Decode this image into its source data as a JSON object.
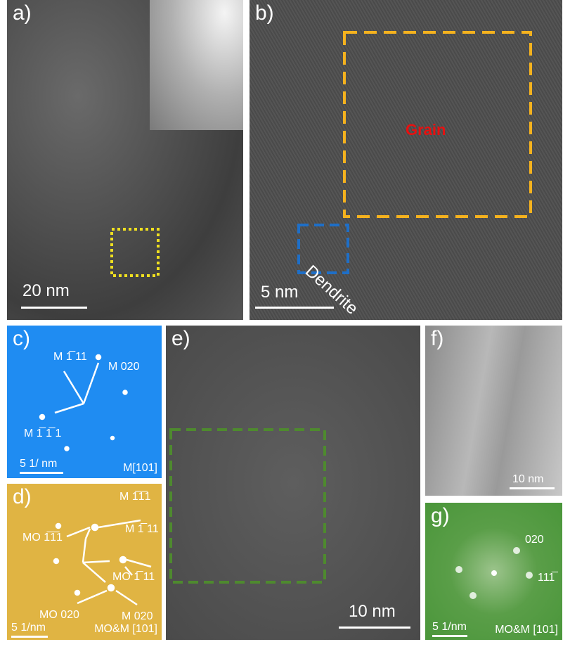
{
  "panels": {
    "a": {
      "label": "a)",
      "scale_bar": "20 nm"
    },
    "b": {
      "label": "b)",
      "scale_bar": "5 nm",
      "grain_label": "Grain",
      "dendrite_label": "Dendrite",
      "grain_box_color": "#f5b21e",
      "dendrite_box_color": "#1e6fc8"
    },
    "c": {
      "label": "c)",
      "spots": [
        "M 1̅ 11",
        "M 020",
        "M 1̅ 1̅ 1"
      ],
      "scale_bar": "5 1/ nm",
      "zone_axis": "M[101]",
      "bg_color": "#1f8cf2"
    },
    "d": {
      "label": "d)",
      "spots": [
        "M 1̅1̅1",
        "MO 1̅1̅1",
        "M 1̅ 11",
        "MO 1̅ 11",
        "MO 020",
        "M 020"
      ],
      "scale_bar": "5 1/nm",
      "zone_axis": "MO&M [101]",
      "bg_color": "#e0b443"
    },
    "e": {
      "label": "e)",
      "scale_bar": "10 nm",
      "box_color": "#4e8a2e"
    },
    "f": {
      "label": "f)",
      "scale_bar": "10 nm"
    },
    "g": {
      "label": "g)",
      "spots": [
        "020",
        "111̅"
      ],
      "scale_bar": "5 1/nm",
      "zone_axis": "MO&M [101]",
      "bg_color": "#4a963a"
    },
    "a_box_color": "#f0e020"
  }
}
